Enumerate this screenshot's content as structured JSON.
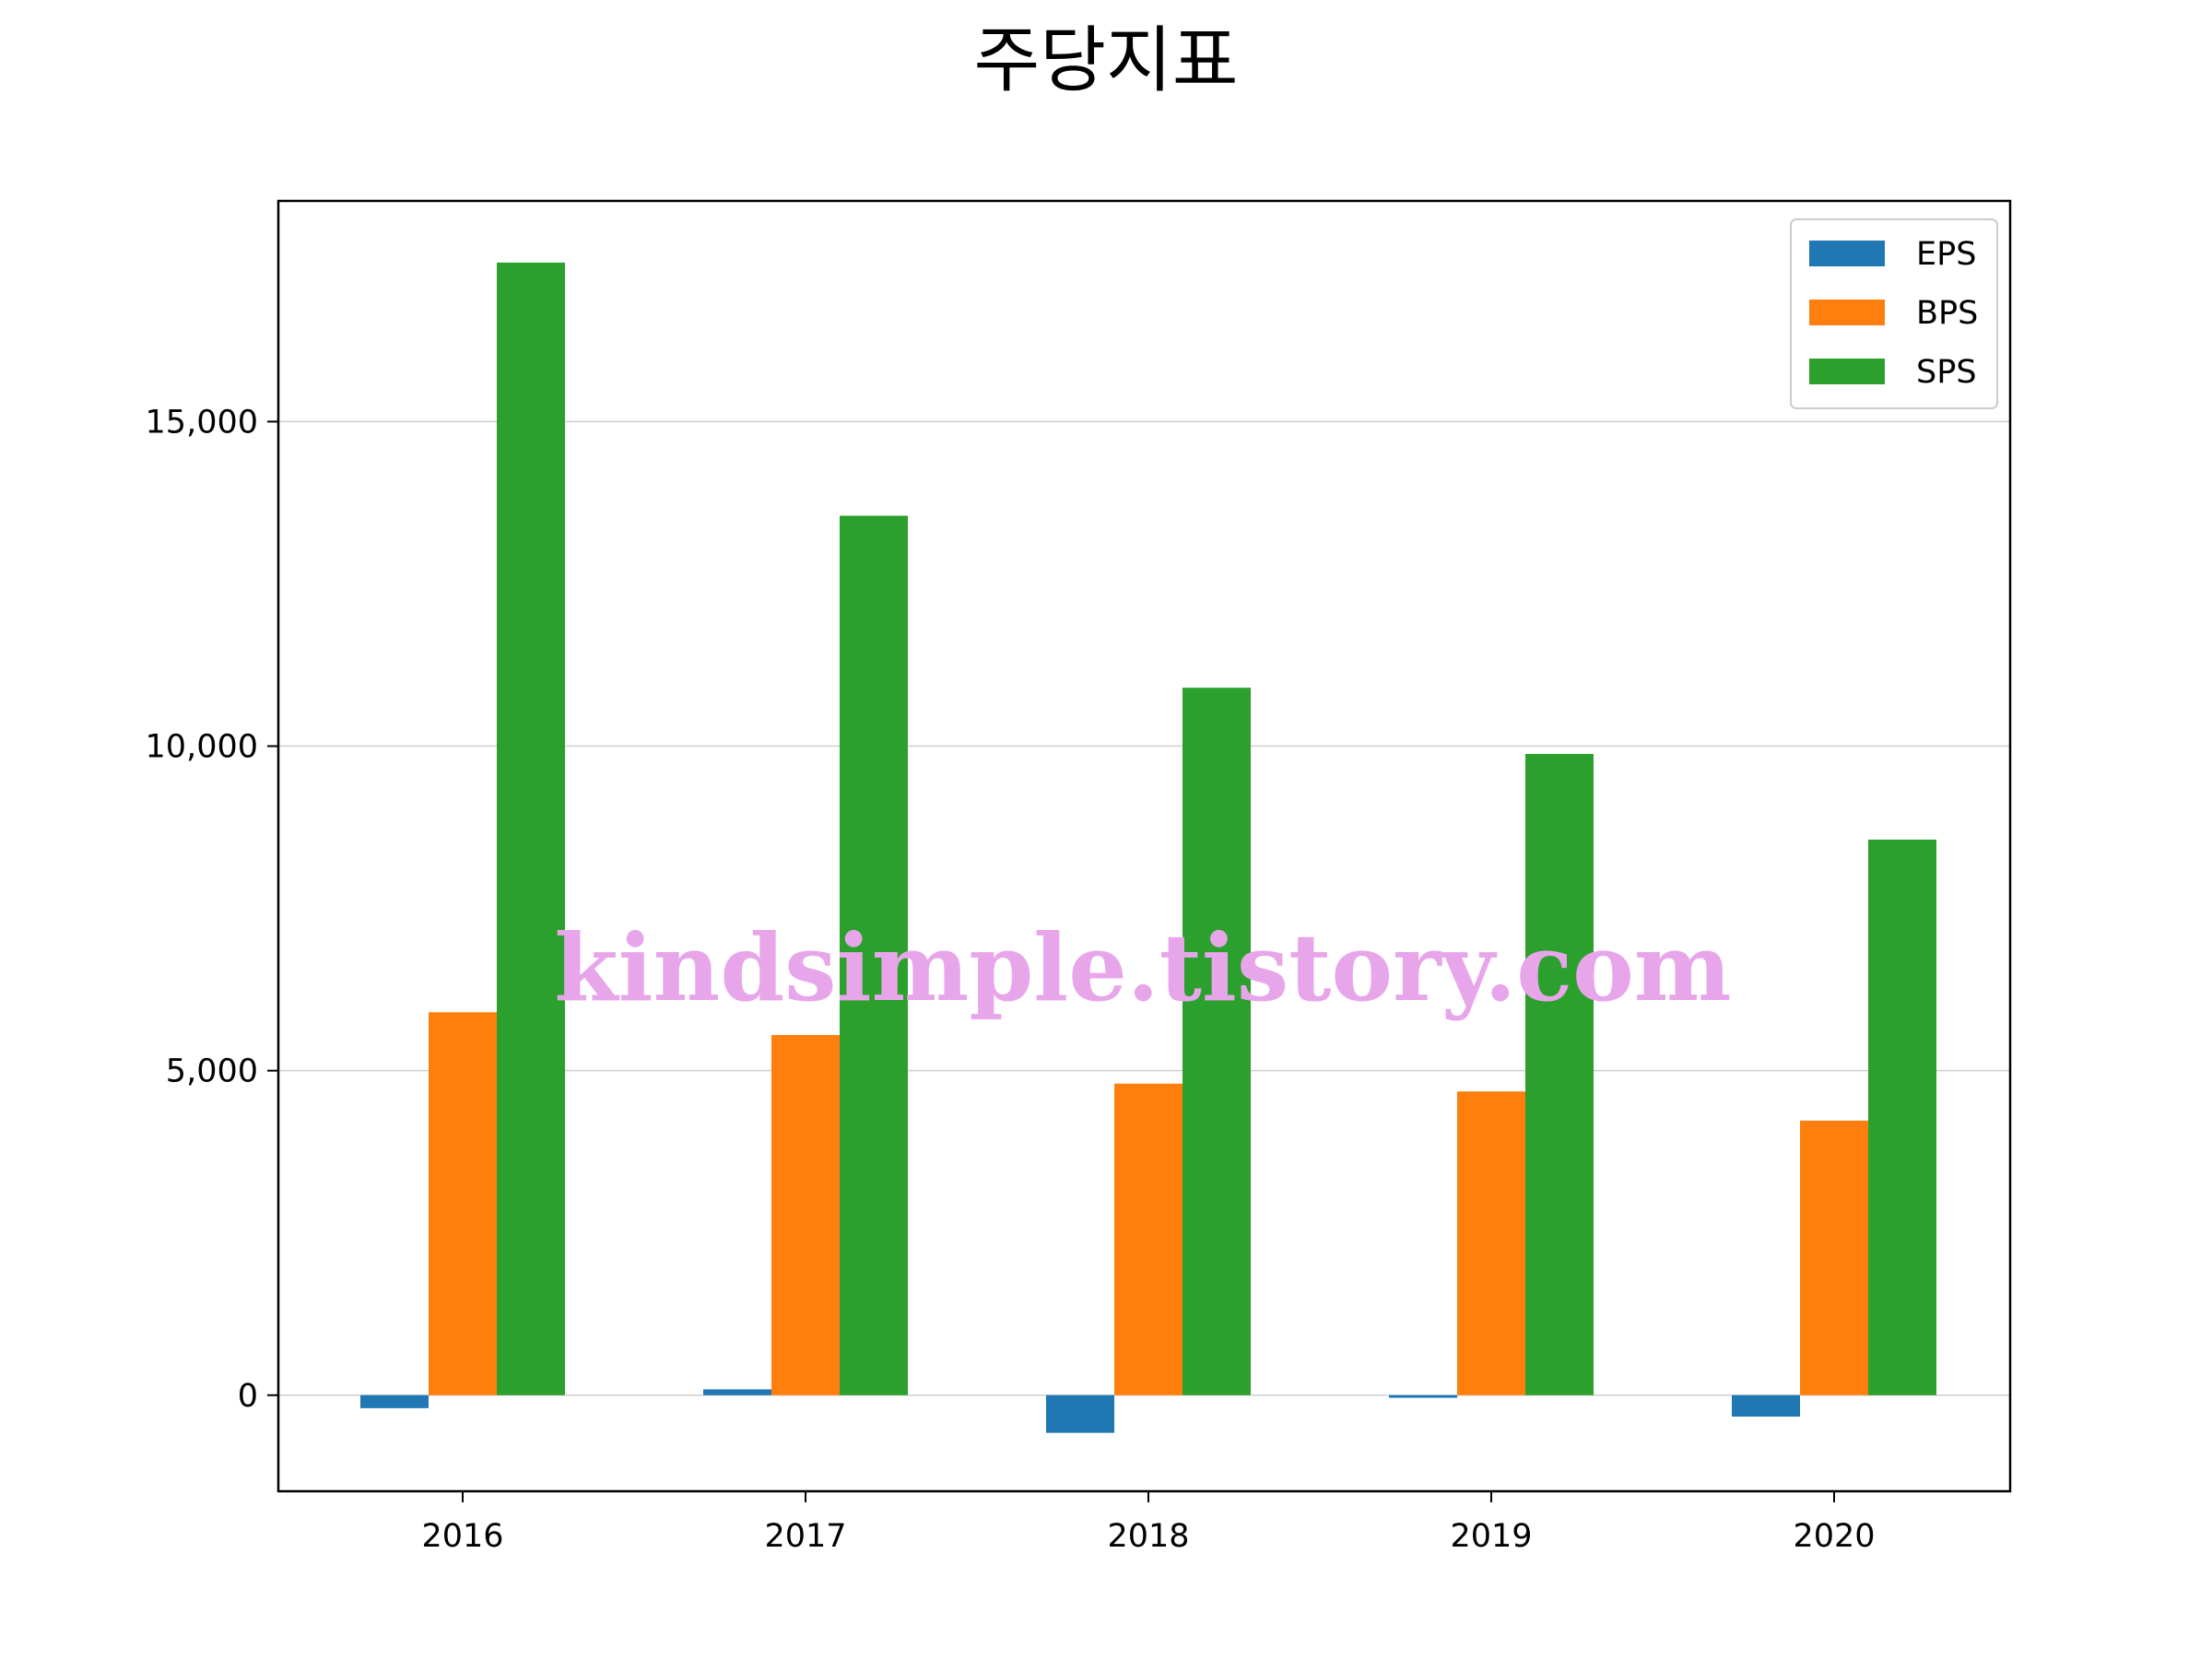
{
  "chart_data": {
    "type": "bar",
    "title": "주당지표",
    "categories": [
      "2016",
      "2017",
      "2018",
      "2019",
      "2020"
    ],
    "series": [
      {
        "name": "EPS",
        "color": "#1f77b4",
        "values": [
          -200,
          90,
          -580,
          -40,
          -330
        ]
      },
      {
        "name": "BPS",
        "color": "#ff7f0e",
        "values": [
          5900,
          5550,
          4800,
          4680,
          4230
        ]
      },
      {
        "name": "SPS",
        "color": "#2ca02c",
        "values": [
          17450,
          13550,
          10900,
          9880,
          8560
        ]
      }
    ],
    "y_ticks": [
      0,
      5000,
      10000,
      15000
    ],
    "y_tick_labels": [
      "0",
      "5,000",
      "10,000",
      "15,000"
    ],
    "ylim": [
      -1480,
      18400
    ],
    "grid": "horizontal",
    "legend_position": "top-right",
    "watermark": "kindsimple.tistory.com"
  }
}
